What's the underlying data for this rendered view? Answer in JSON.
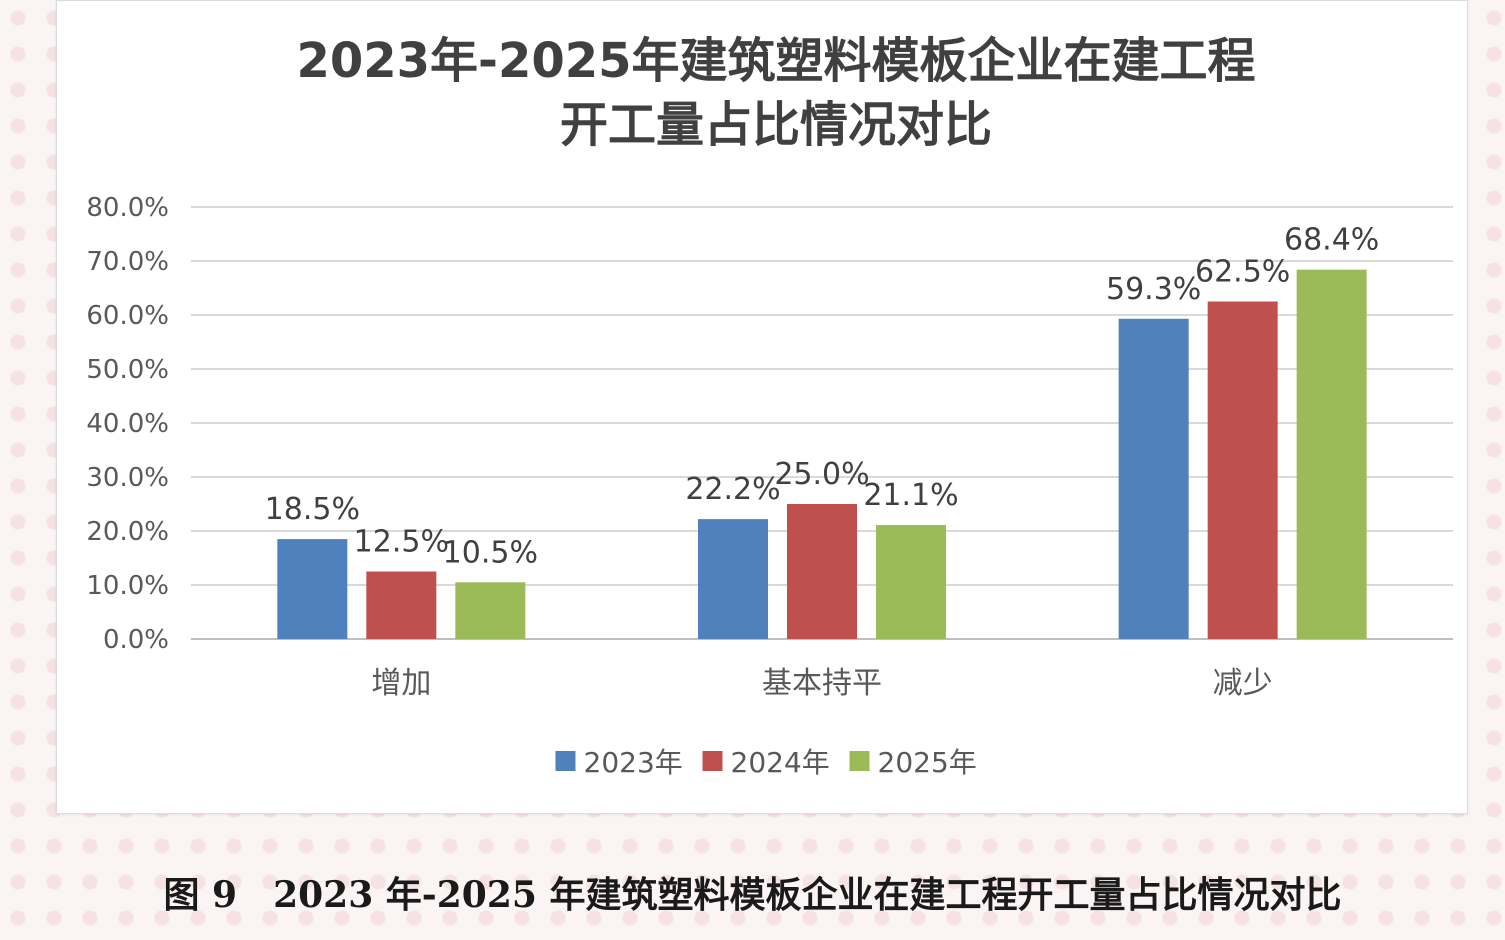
{
  "figure_caption": "图 9　2023 年-2025 年建筑塑料模板企业在建工程开工量占比情况对比",
  "chart_data": {
    "type": "bar",
    "title_lines": [
      "2023年-2025年建筑塑料模板企业在建工程",
      "开工量占比情况对比"
    ],
    "categories": [
      "增加",
      "基本持平",
      "减少"
    ],
    "series": [
      {
        "name": "2023年",
        "color": "#4f81bd",
        "values": [
          18.5,
          22.2,
          59.3
        ]
      },
      {
        "name": "2024年",
        "color": "#c0504d",
        "values": [
          12.5,
          25.0,
          62.5
        ]
      },
      {
        "name": "2025年",
        "color": "#9bbb59",
        "values": [
          10.5,
          21.1,
          68.4
        ]
      }
    ],
    "y_ticks": [
      "0.0%",
      "10.0%",
      "20.0%",
      "30.0%",
      "40.0%",
      "50.0%",
      "60.0%",
      "70.0%",
      "80.0%"
    ],
    "value_format": "percent_1dp",
    "ylim": [
      0,
      80
    ],
    "y_step": 10,
    "grid": true,
    "legend_position": "bottom"
  }
}
